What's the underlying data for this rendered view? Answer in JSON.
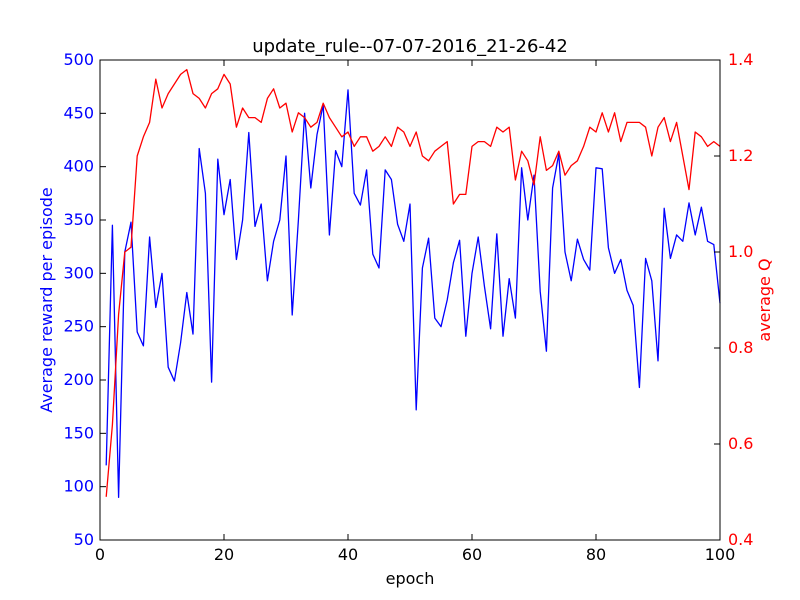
{
  "chart_data": {
    "type": "line",
    "title": "update_rule--07-07-2016_21-26-42",
    "xlabel": "epoch",
    "ylabel_left": "Average reward per episode",
    "ylabel_right": "average Q",
    "xlim": [
      0,
      100
    ],
    "ylim_left": [
      50,
      500
    ],
    "ylim_right": [
      0.4,
      1.4
    ],
    "xticks": [
      0,
      20,
      40,
      60,
      80,
      100
    ],
    "yticks_left": [
      50,
      100,
      150,
      200,
      250,
      300,
      350,
      400,
      450,
      500
    ],
    "yticks_right": [
      0.4,
      0.6,
      0.8,
      1.0,
      1.2,
      1.4
    ],
    "ytick_labels_right": [
      "0.4",
      "0.6",
      "0.8",
      "1.0",
      "1.2",
      "1.4"
    ],
    "grid": false,
    "colors": {
      "left": "#0000ff",
      "right": "#ff0000"
    },
    "series": [
      {
        "axis": "left",
        "color": "#0000ff",
        "x": [
          1,
          2,
          3,
          4,
          5,
          6,
          7,
          8,
          9,
          10,
          11,
          12,
          13,
          14,
          15,
          16,
          17,
          18,
          19,
          20,
          21,
          22,
          23,
          24,
          25,
          26,
          27,
          28,
          29,
          30,
          31,
          32,
          33,
          34,
          35,
          36,
          37,
          38,
          39,
          40,
          41,
          42,
          43,
          44,
          45,
          46,
          47,
          48,
          49,
          50,
          51,
          52,
          53,
          54,
          55,
          56,
          57,
          58,
          59,
          60,
          61,
          62,
          63,
          64,
          65,
          66,
          67,
          68,
          69,
          70,
          71,
          72,
          73,
          74,
          75,
          76,
          77,
          78,
          79,
          80,
          81,
          82,
          83,
          84,
          85,
          86,
          87,
          88,
          89,
          90,
          91,
          92,
          93,
          94,
          95,
          96,
          97,
          98,
          99,
          100
        ],
        "values": [
          120,
          345,
          90,
          320,
          348,
          245,
          232,
          334,
          268,
          300,
          212,
          199,
          235,
          282,
          243,
          417,
          375,
          198,
          407,
          355,
          388,
          313,
          350,
          432,
          344,
          365,
          293,
          330,
          350,
          410,
          261,
          350,
          450,
          380,
          430,
          458,
          336,
          415,
          400,
          472,
          375,
          364,
          397,
          318,
          305,
          397,
          388,
          346,
          330,
          365,
          172,
          305,
          333,
          258,
          250,
          275,
          310,
          331,
          241,
          300,
          334,
          288,
          248,
          337,
          241,
          295,
          258,
          399,
          350,
          392,
          283,
          227,
          380,
          412,
          320,
          293,
          332,
          313,
          303,
          399,
          398,
          324,
          300,
          313,
          284,
          270,
          193,
          314,
          293,
          218,
          361,
          314,
          336,
          330,
          366,
          336,
          362,
          330,
          327,
          272
        ]
      },
      {
        "axis": "right",
        "color": "#ff0000",
        "x": [
          1,
          2,
          3,
          4,
          5,
          6,
          7,
          8,
          9,
          10,
          11,
          12,
          13,
          14,
          15,
          16,
          17,
          18,
          19,
          20,
          21,
          22,
          23,
          24,
          25,
          26,
          27,
          28,
          29,
          30,
          31,
          32,
          33,
          34,
          35,
          36,
          37,
          38,
          39,
          40,
          41,
          42,
          43,
          44,
          45,
          46,
          47,
          48,
          49,
          50,
          51,
          52,
          53,
          54,
          55,
          56,
          57,
          58,
          59,
          60,
          61,
          62,
          63,
          64,
          65,
          66,
          67,
          68,
          69,
          70,
          71,
          72,
          73,
          74,
          75,
          76,
          77,
          78,
          79,
          80,
          81,
          82,
          83,
          84,
          85,
          86,
          87,
          88,
          89,
          90,
          91,
          92,
          93,
          94,
          95,
          96,
          97,
          98,
          99,
          100
        ],
        "values": [
          0.49,
          0.64,
          0.87,
          1.0,
          1.01,
          1.2,
          1.24,
          1.27,
          1.36,
          1.3,
          1.33,
          1.35,
          1.37,
          1.38,
          1.33,
          1.32,
          1.3,
          1.33,
          1.34,
          1.37,
          1.35,
          1.26,
          1.3,
          1.28,
          1.28,
          1.27,
          1.32,
          1.34,
          1.3,
          1.31,
          1.25,
          1.29,
          1.28,
          1.26,
          1.27,
          1.31,
          1.28,
          1.26,
          1.24,
          1.25,
          1.22,
          1.24,
          1.24,
          1.21,
          1.22,
          1.24,
          1.22,
          1.26,
          1.25,
          1.22,
          1.25,
          1.2,
          1.19,
          1.21,
          1.22,
          1.23,
          1.1,
          1.12,
          1.12,
          1.22,
          1.23,
          1.23,
          1.22,
          1.26,
          1.25,
          1.26,
          1.15,
          1.21,
          1.19,
          1.14,
          1.24,
          1.17,
          1.18,
          1.21,
          1.16,
          1.18,
          1.19,
          1.22,
          1.26,
          1.25,
          1.29,
          1.25,
          1.29,
          1.23,
          1.27,
          1.27,
          1.27,
          1.26,
          1.2,
          1.26,
          1.28,
          1.23,
          1.27,
          1.2,
          1.13,
          1.25,
          1.24,
          1.22,
          1.23,
          1.22
        ]
      }
    ]
  }
}
